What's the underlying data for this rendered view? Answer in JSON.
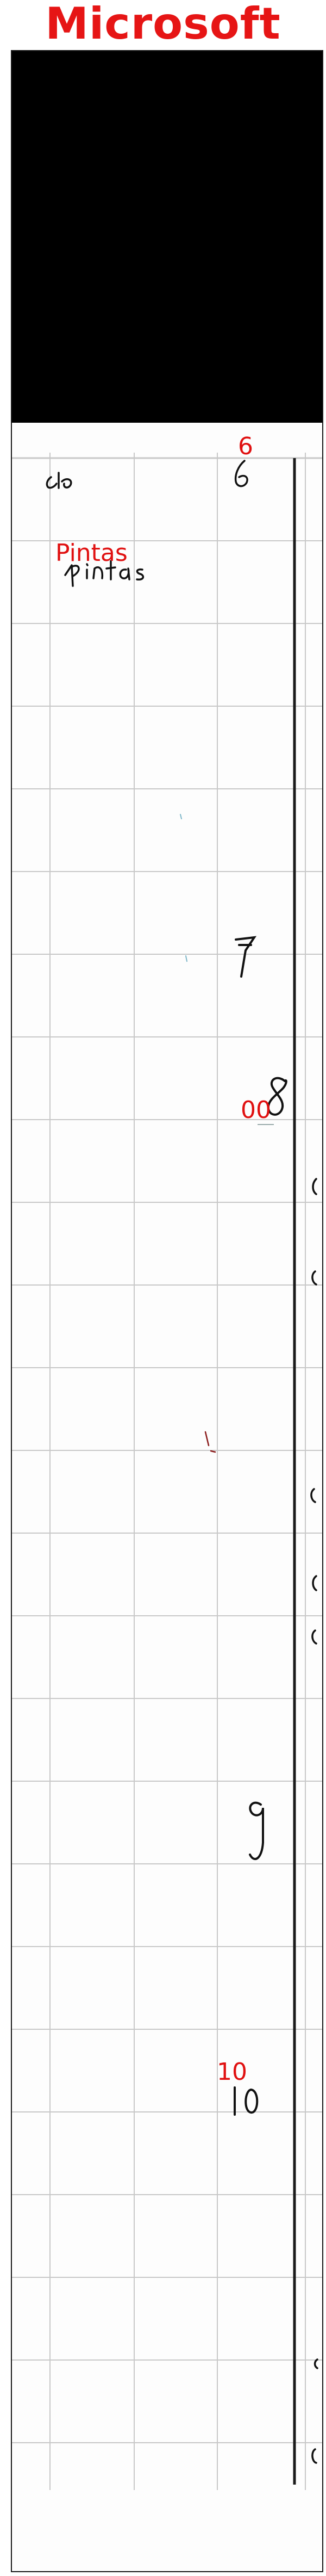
{
  "header": {
    "brand_title": "Microsoft"
  },
  "colors": {
    "brand_title": "#e61515",
    "annotation": "#e01010",
    "ink": "#111111",
    "grid": "#c8c8c8",
    "black_band": "#000000"
  },
  "annotations": {
    "label_6": "6",
    "label_pintas": "Pintas",
    "label_00": "00",
    "label_10": "10"
  },
  "handwriting": [
    "cle",
    "6",
    "pintas",
    "7",
    "8",
    "9",
    "10"
  ]
}
